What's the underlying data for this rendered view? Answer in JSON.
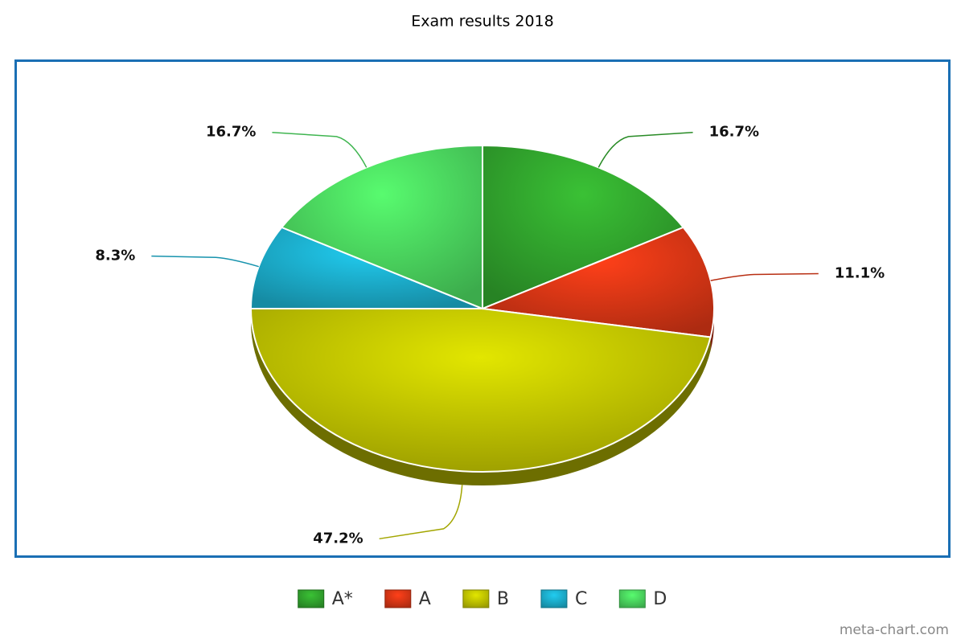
{
  "chart_data": {
    "type": "pie",
    "title": "Exam results 2018",
    "categories": [
      "A*",
      "A",
      "B",
      "C",
      "D"
    ],
    "values": [
      16.7,
      11.1,
      47.2,
      8.3,
      16.7
    ],
    "value_labels": [
      "16.7%",
      "11.1%",
      "47.2%",
      "8.3%",
      "16.7%"
    ],
    "colors": [
      "#2e9a2a",
      "#cc3314",
      "#b5b800",
      "#1aa3c0",
      "#46c959"
    ],
    "legend": "bottom",
    "credit": "meta-chart.com"
  }
}
